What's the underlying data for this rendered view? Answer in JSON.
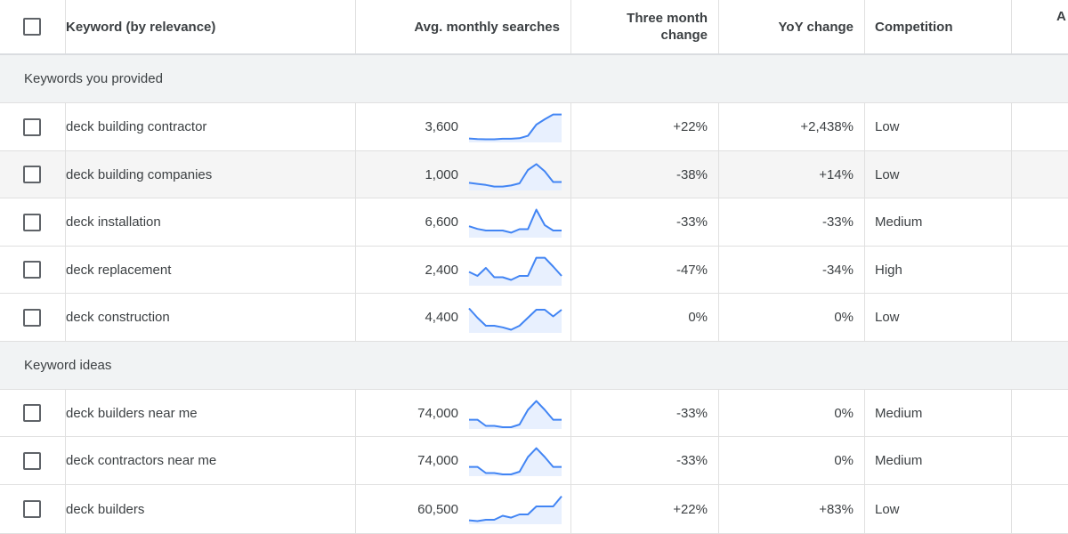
{
  "header": {
    "keyword": "Keyword (by relevance)",
    "avg_searches": "Avg. monthly searches",
    "three_month": "Three month change",
    "yoy": "YoY change",
    "competition": "Competition",
    "extra_partial": "A"
  },
  "groups": [
    {
      "label": "Keywords you provided"
    },
    {
      "label": "Keyword ideas"
    }
  ],
  "colors": {
    "accent": "#4285f4",
    "fill": "#e8f0fe",
    "group_bg": "#f1f3f4"
  },
  "rows": [
    {
      "keyword": "deck building contractor",
      "avg": "3,600",
      "three": "+22%",
      "yoy": "+2,438%",
      "competition": "Low",
      "trend": [
        0.08,
        0.06,
        0.05,
        0.05,
        0.07,
        0.07,
        0.09,
        0.18,
        0.6,
        0.8,
        0.98,
        0.98
      ]
    },
    {
      "keyword": "deck building companies",
      "avg": "1,000",
      "three": "-38%",
      "yoy": "+14%",
      "competition": "Low",
      "trend": [
        0.22,
        0.18,
        0.14,
        0.08,
        0.08,
        0.12,
        0.2,
        0.7,
        0.92,
        0.65,
        0.25,
        0.25
      ]
    },
    {
      "keyword": "deck installation",
      "avg": "6,600",
      "three": "-33%",
      "yoy": "-33%",
      "competition": "Medium",
      "trend": [
        0.36,
        0.26,
        0.2,
        0.2,
        0.2,
        0.12,
        0.25,
        0.25,
        0.98,
        0.4,
        0.2,
        0.2
      ]
    },
    {
      "keyword": "deck replacement",
      "avg": "2,400",
      "three": "-47%",
      "yoy": "-34%",
      "competition": "High",
      "trend": [
        0.45,
        0.3,
        0.6,
        0.25,
        0.25,
        0.15,
        0.3,
        0.3,
        0.98,
        0.98,
        0.65,
        0.3
      ]
    },
    {
      "keyword": "deck construction",
      "avg": "4,400",
      "three": "0%",
      "yoy": "0%",
      "competition": "Low",
      "trend": [
        0.85,
        0.5,
        0.2,
        0.2,
        0.14,
        0.05,
        0.2,
        0.5,
        0.8,
        0.8,
        0.55,
        0.8
      ]
    },
    {
      "keyword": "deck builders near me",
      "avg": "74,000",
      "three": "-33%",
      "yoy": "0%",
      "competition": "Medium",
      "trend": [
        0.28,
        0.28,
        0.05,
        0.05,
        0.0,
        0.0,
        0.1,
        0.65,
        0.98,
        0.65,
        0.28,
        0.28
      ]
    },
    {
      "keyword": "deck contractors near me",
      "avg": "74,000",
      "three": "-33%",
      "yoy": "0%",
      "competition": "Medium",
      "trend": [
        0.28,
        0.28,
        0.05,
        0.05,
        0.0,
        0.0,
        0.1,
        0.65,
        0.98,
        0.65,
        0.28,
        0.28
      ]
    },
    {
      "keyword": "deck builders",
      "avg": "60,500",
      "three": "+22%",
      "yoy": "+83%",
      "competition": "Low",
      "trend": [
        0.08,
        0.05,
        0.1,
        0.1,
        0.25,
        0.18,
        0.3,
        0.3,
        0.6,
        0.6,
        0.6,
        0.98
      ]
    }
  ]
}
